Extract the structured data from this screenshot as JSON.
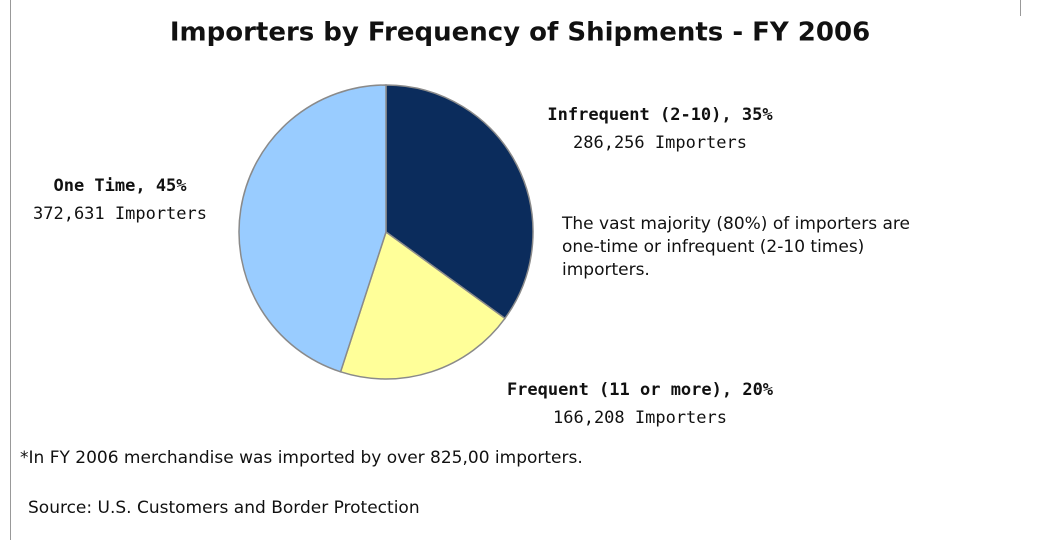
{
  "chart_data": {
    "type": "pie",
    "title": "Importers by Frequency of Shipments - FY 2006",
    "categories": [
      "Infrequent (2-10), 35%",
      "Frequent (11 or more), 20%",
      "One Time, 45%"
    ],
    "values": [
      35,
      20,
      45
    ],
    "counts": [
      286256,
      166208,
      372631
    ],
    "count_labels": [
      "286,256 Importers",
      "166,208 Importers",
      "372,631 Importers"
    ],
    "colors": [
      "#0b2c5c",
      "#ffff99",
      "#99ccff"
    ],
    "annotation": [
      "The vast majority (80%) of importers are",
      "one-time or infrequent (2-10 times)",
      "importers."
    ],
    "footnote": "*In FY 2006 merchandise was imported by over 825,00 importers.",
    "source": "Source: U.S. Customers and Border Protection"
  }
}
